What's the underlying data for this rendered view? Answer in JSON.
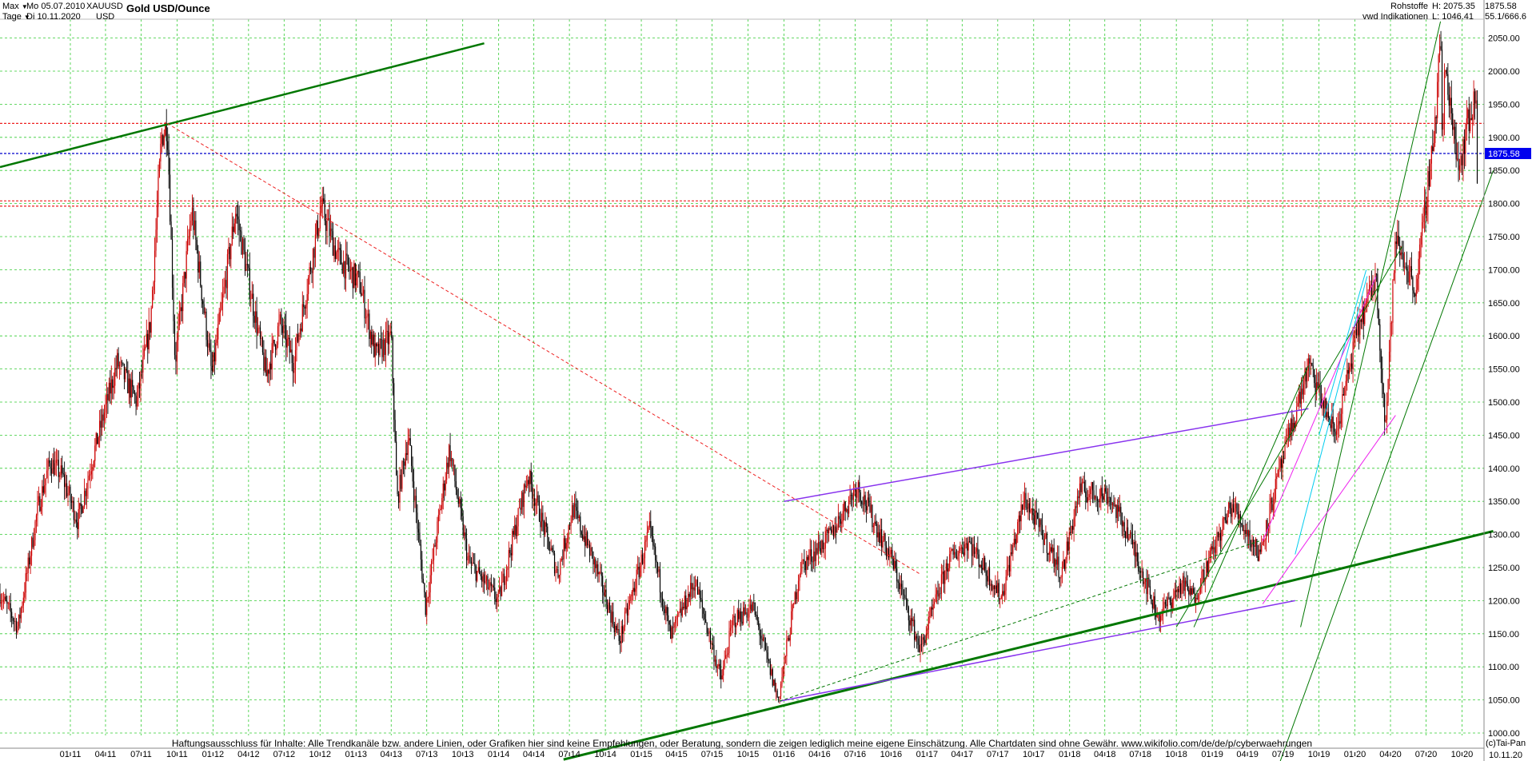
{
  "header": {
    "period_label": "Max",
    "period_dropdown_icon": "caret-down-icon",
    "interval_label": "Tage",
    "interval_dropdown_icon": "caret-down-icon",
    "date_from": "Mo 05.07.2010",
    "date_to": "Di 10.11.2020",
    "symbol": "XAUUSD",
    "currency": "USD",
    "title": "Gold USD/Ounce"
  },
  "info": {
    "category": "Rohstoffe",
    "source": "vwd Indikationen",
    "high": "H: 2075.35",
    "low": "L: 1046.41",
    "last": "1875.58",
    "ratio": "55.1/666.6"
  },
  "footer": {
    "disclaimer": "Haftungsausschluss für Inhalte: Alle Trendkanäle bzw. andere Linien, oder Grafiken hier sind keine Empfehlungen, oder Beratung, sondern die zeigen lediglich meine eigene Einschätzung. Alle Chartdaten sind ohne Gewähr.  www.wikifolio.com/de/de/p/cyberwaehrungen",
    "copyright": "(c)Tai-Pan",
    "last_date": "10.11.20"
  },
  "colors": {
    "grid": "#33cc33",
    "candle_up": "#cc0000",
    "candle_down": "#000000",
    "trend_green": "#007700",
    "trend_purple": "#8833ee",
    "trend_cyan": "#00ccee",
    "trend_magenta": "#ee22ee",
    "level_red": "#ee2222",
    "level_blue": "#0000cc",
    "price_tag": "#0000ee"
  },
  "chart_data": {
    "type": "candlestick",
    "title": "Gold USD/Ounce",
    "xlabel": "",
    "ylabel": "",
    "ylim": [
      1000,
      2075
    ],
    "y_ticks": [
      1000,
      1050,
      1100,
      1150,
      1200,
      1250,
      1300,
      1350,
      1400,
      1450,
      1500,
      1550,
      1600,
      1650,
      1700,
      1750,
      1800,
      1850,
      1900,
      1950,
      2000,
      2050
    ],
    "y_tick_labels": [
      "1000.00",
      "1050.00",
      "1100.00",
      "1150.00",
      "1200.00",
      "1250.00",
      "1300.00",
      "1350.00",
      "1400.00",
      "1450.00",
      "1500.00",
      "1550.00",
      "1600.00",
      "1650.00",
      "1700.00",
      "1750.00",
      "1800.00",
      "1850.00",
      "1900.00",
      "1950.00",
      "2000.00",
      "2050.00"
    ],
    "x_tick_labels": [
      "01 11",
      "04 11",
      "07 11",
      "10 11",
      "01 12",
      "04 12",
      "07 12",
      "10 12",
      "01 13",
      "04 13",
      "07 13",
      "10 13",
      "01 14",
      "04 14",
      "07 14",
      "10 14",
      "01 15",
      "04 15",
      "07 15",
      "10 15",
      "01 16",
      "04 16",
      "07 16",
      "10 16",
      "01 17",
      "04 17",
      "07 17",
      "10 17",
      "01 18",
      "04 18",
      "07 18",
      "10 18",
      "01 19",
      "04 19",
      "07 19",
      "10 19",
      "01 20",
      "04 20",
      "07 20",
      "10 20"
    ],
    "x_tick_dates": [
      "2011-01",
      "2011-04",
      "2011-07",
      "2011-10",
      "2012-01",
      "2012-04",
      "2012-07",
      "2012-10",
      "2013-01",
      "2013-04",
      "2013-07",
      "2013-10",
      "2014-01",
      "2014-04",
      "2014-07",
      "2014-10",
      "2015-01",
      "2015-04",
      "2015-07",
      "2015-10",
      "2016-01",
      "2016-04",
      "2016-07",
      "2016-10",
      "2017-01",
      "2017-04",
      "2017-07",
      "2017-10",
      "2018-01",
      "2018-04",
      "2018-07",
      "2018-10",
      "2019-01",
      "2019-04",
      "2019-07",
      "2019-10",
      "2020-01",
      "2020-04",
      "2020-07",
      "2020-10"
    ],
    "x_range": [
      "2010-07-05",
      "2020-11-10"
    ],
    "grid": true,
    "last_price": 1875.58,
    "high": 2075.35,
    "low": 1046.41,
    "price_path": [
      [
        "2010-07-05",
        1210
      ],
      [
        "2010-08-20",
        1160
      ],
      [
        "2010-10-10",
        1340
      ],
      [
        "2010-11-10",
        1410
      ],
      [
        "2010-12-10",
        1390
      ],
      [
        "2011-01-20",
        1320
      ],
      [
        "2011-03-01",
        1420
      ],
      [
        "2011-05-01",
        1560
      ],
      [
        "2011-06-20",
        1500
      ],
      [
        "2011-07-25",
        1620
      ],
      [
        "2011-08-22",
        1900
      ],
      [
        "2011-09-06",
        1920
      ],
      [
        "2011-09-26",
        1560
      ],
      [
        "2011-11-08",
        1790
      ],
      [
        "2011-12-29",
        1540
      ],
      [
        "2012-02-28",
        1790
      ],
      [
        "2012-05-16",
        1540
      ],
      [
        "2012-06-20",
        1620
      ],
      [
        "2012-07-25",
        1560
      ],
      [
        "2012-10-04",
        1795
      ],
      [
        "2012-11-15",
        1720
      ],
      [
        "2013-01-10",
        1680
      ],
      [
        "2013-02-20",
        1570
      ],
      [
        "2013-04-01",
        1600
      ],
      [
        "2013-04-16",
        1350
      ],
      [
        "2013-05-15",
        1450
      ],
      [
        "2013-06-28",
        1190
      ],
      [
        "2013-08-28",
        1430
      ],
      [
        "2013-10-15",
        1260
      ],
      [
        "2013-12-31",
        1200
      ],
      [
        "2014-03-17",
        1390
      ],
      [
        "2014-06-01",
        1240
      ],
      [
        "2014-07-10",
        1340
      ],
      [
        "2014-09-01",
        1260
      ],
      [
        "2014-11-06",
        1140
      ],
      [
        "2015-01-22",
        1305
      ],
      [
        "2015-03-17",
        1145
      ],
      [
        "2015-05-18",
        1230
      ],
      [
        "2015-07-24",
        1080
      ],
      [
        "2015-08-24",
        1170
      ],
      [
        "2015-10-14",
        1190
      ],
      [
        "2015-12-17",
        1050
      ],
      [
        "2016-02-11",
        1250
      ],
      [
        "2016-05-01",
        1300
      ],
      [
        "2016-07-06",
        1375
      ],
      [
        "2016-10-04",
        1260
      ],
      [
        "2016-12-15",
        1125
      ],
      [
        "2017-02-25",
        1260
      ],
      [
        "2017-04-17",
        1290
      ],
      [
        "2017-07-10",
        1205
      ],
      [
        "2017-09-08",
        1355
      ],
      [
        "2017-12-12",
        1240
      ],
      [
        "2018-01-25",
        1365
      ],
      [
        "2018-04-10",
        1360
      ],
      [
        "2018-06-01",
        1300
      ],
      [
        "2018-08-16",
        1175
      ],
      [
        "2018-10-15",
        1225
      ],
      [
        "2018-11-15",
        1205
      ],
      [
        "2019-02-20",
        1345
      ],
      [
        "2019-05-01",
        1270
      ],
      [
        "2019-06-20",
        1390
      ],
      [
        "2019-09-04",
        1555
      ],
      [
        "2019-11-12",
        1450
      ],
      [
        "2020-01-08",
        1610
      ],
      [
        "2020-02-24",
        1690
      ],
      [
        "2020-03-19",
        1460
      ],
      [
        "2020-04-14",
        1745
      ],
      [
        "2020-06-05",
        1670
      ],
      [
        "2020-07-27",
        1940
      ],
      [
        "2020-08-07",
        2075
      ],
      [
        "2020-08-12",
        1860
      ],
      [
        "2020-08-18",
        2010
      ],
      [
        "2020-09-24",
        1855
      ],
      [
        "2020-10-15",
        1920
      ],
      [
        "2020-11-06",
        1960
      ],
      [
        "2020-11-09",
        1850
      ],
      [
        "2020-11-10",
        1875.58
      ]
    ],
    "horizontal_levels": [
      {
        "price": 1921,
        "color": "red",
        "style": "dashed"
      },
      {
        "price": 1875.58,
        "color": "blue",
        "style": "dashed"
      },
      {
        "price": 1804,
        "color": "red",
        "style": "dashed"
      },
      {
        "price": 1796,
        "color": "red",
        "style": "dashed"
      }
    ],
    "trendlines": [
      {
        "from": [
          "2010-07-05",
          1855
        ],
        "to": [
          "2013-11-25",
          2042
        ],
        "color": "green",
        "width": 2.5
      },
      {
        "from": [
          "2014-06-16",
          960
        ],
        "to": [
          "2020-12-20",
          1305
        ],
        "color": "green",
        "width": 3
      },
      {
        "from": [
          "2011-09-06",
          1921
        ],
        "to": [
          "2016-12-15",
          1240
        ],
        "color": "red",
        "style": "dashed",
        "width": 1
      },
      {
        "from": [
          "2016-01-01",
          1350
        ],
        "to": [
          "2019-09-04",
          1490
        ],
        "color": "purple",
        "width": 1.5
      },
      {
        "from": [
          "2015-12-20",
          1048
        ],
        "to": [
          "2019-08-01",
          1200
        ],
        "color": "purple",
        "width": 1.5
      },
      {
        "from": [
          "2018-11-15",
          1160
        ],
        "to": [
          "2019-09-04",
          1555
        ],
        "color": "green",
        "width": 1
      },
      {
        "from": [
          "2018-10-01",
          1160
        ],
        "to": [
          "2020-05-01",
          1735
        ],
        "color": "green",
        "width": 1
      },
      {
        "from": [
          "2019-08-15",
          1160
        ],
        "to": [
          "2020-08-07",
          2075
        ],
        "color": "green",
        "width": 1
      },
      {
        "from": [
          "2019-06-01",
          920
        ],
        "to": [
          "2020-12-20",
          1850
        ],
        "color": "green",
        "width": 1
      },
      {
        "from": [
          "2019-08-01",
          1270
        ],
        "to": [
          "2020-02-01",
          1690
        ],
        "color": "cyan",
        "width": 1
      },
      {
        "from": [
          "2019-10-01",
          1450
        ],
        "to": [
          "2020-01-30",
          1700
        ],
        "color": "cyan",
        "width": 1
      },
      {
        "from": [
          "2019-05-10",
          1290
        ],
        "to": [
          "2020-02-24",
          1690
        ],
        "color": "magenta",
        "width": 1
      },
      {
        "from": [
          "2019-05-10",
          1195
        ],
        "to": [
          "2020-04-14",
          1480
        ],
        "color": "magenta",
        "width": 1
      },
      {
        "from": [
          "2015-12-20",
          1048
        ],
        "to": [
          "2019-05-01",
          1290
        ],
        "color": "green",
        "style": "dashed",
        "width": 1
      }
    ]
  }
}
